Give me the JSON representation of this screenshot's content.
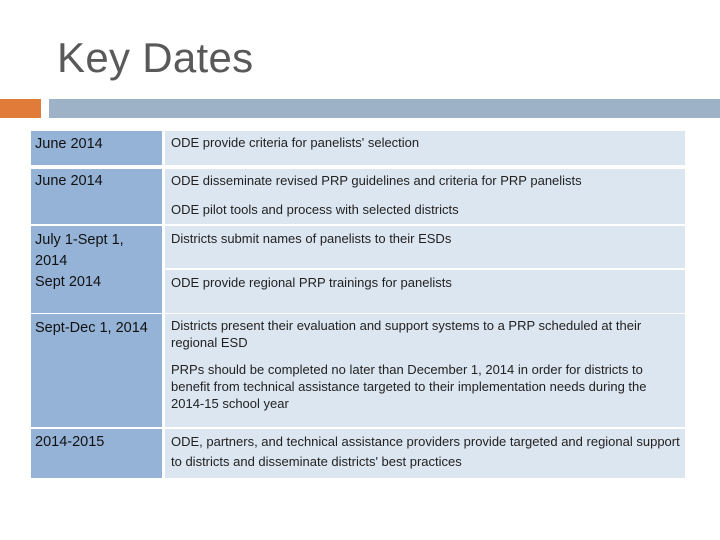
{
  "title": "Key Dates",
  "rows": [
    {
      "date": "June 2014",
      "items": [
        "ODE provide criteria for panelists' selection"
      ]
    },
    {
      "date": " June 2014",
      "items": [
        "ODE disseminate revised PRP guidelines and criteria for PRP panelists",
        "ODE pilot tools and process with selected districts"
      ]
    },
    {
      "date": "July 1-Sept 1, 2014\nSept 2014",
      "items": [
        "Districts submit names of panelists to their ESDs",
        "ODE provide regional PRP trainings for panelists"
      ]
    },
    {
      "date": "Sept-Dec 1, 2014",
      "items": [
        "Districts present their evaluation and support systems to a PRP scheduled at their regional ESD",
        "PRPs should be completed no later than December 1, 2014 in order for districts to benefit from technical assistance targeted to their implementation needs during the 2014-15 school year"
      ]
    },
    {
      "date": "2014-2015",
      "items": [
        "ODE, partners, and technical assistance providers provide targeted and regional support to districts and disseminate districts' best practices"
      ]
    }
  ]
}
